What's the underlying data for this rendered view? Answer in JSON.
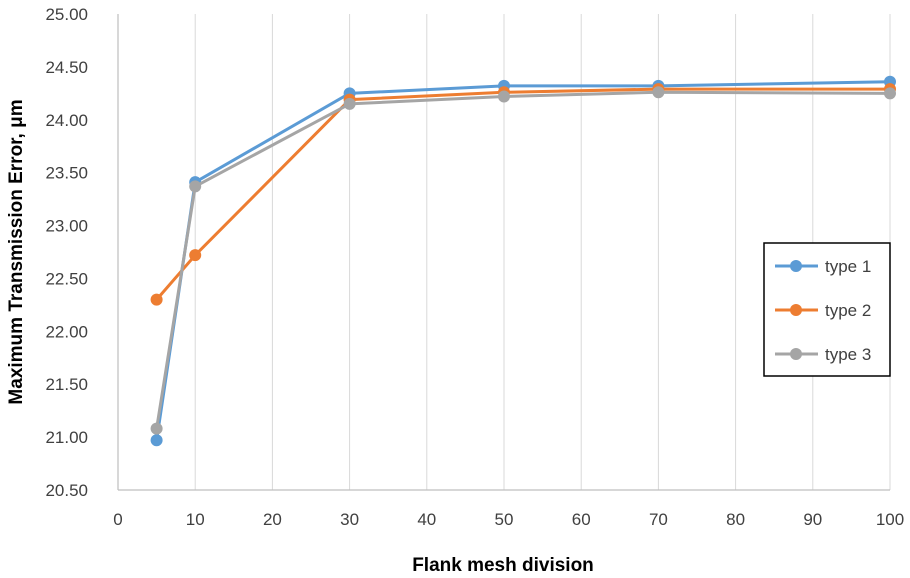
{
  "chart_data": {
    "type": "line",
    "title": "",
    "xlabel": "Flank mesh division",
    "ylabel": "Maximum Transmission Error, μm",
    "xlim": [
      0,
      100
    ],
    "ylim": [
      20.5,
      25.0
    ],
    "x_ticks": [
      "0",
      "10",
      "20",
      "30",
      "40",
      "50",
      "60",
      "70",
      "80",
      "90",
      "100"
    ],
    "y_ticks": [
      "20.50",
      "21.00",
      "21.50",
      "22.00",
      "22.50",
      "23.00",
      "23.50",
      "24.00",
      "24.50",
      "25.00"
    ],
    "grid": "vertical",
    "legend_position": "right",
    "x": [
      5,
      10,
      30,
      50,
      70,
      100
    ],
    "series": [
      {
        "name": "type 1",
        "color": "#5B9BD5",
        "values": [
          20.97,
          23.41,
          24.25,
          24.32,
          24.32,
          24.36
        ]
      },
      {
        "name": "type 2",
        "color": "#ED7D31",
        "values": [
          22.3,
          22.72,
          24.19,
          24.26,
          24.29,
          24.29
        ]
      },
      {
        "name": "type 3",
        "color": "#A5A5A5",
        "values": [
          21.08,
          23.37,
          24.15,
          24.22,
          24.26,
          24.25
        ]
      }
    ]
  }
}
